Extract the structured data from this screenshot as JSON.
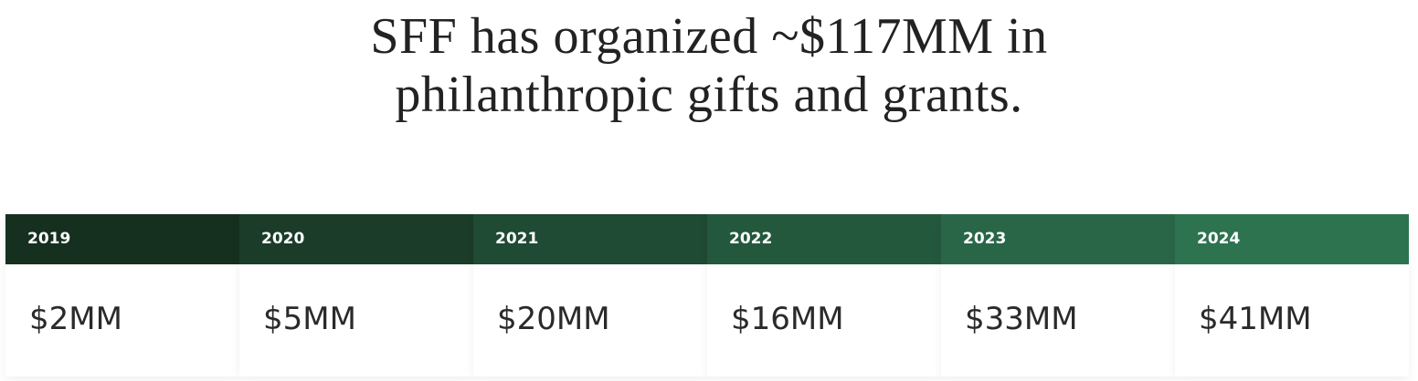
{
  "title": {
    "lines": [
      "SFF has organized ~$117MM in",
      "philanthropic gifts and grants."
    ]
  },
  "cards": [
    {
      "year": "2019",
      "amount": "$2MM"
    },
    {
      "year": "2020",
      "amount": "$5MM"
    },
    {
      "year": "2021",
      "amount": "$20MM"
    },
    {
      "year": "2022",
      "amount": "$16MM"
    },
    {
      "year": "2023",
      "amount": "$33MM"
    },
    {
      "year": "2024",
      "amount": "$41MM"
    }
  ]
}
